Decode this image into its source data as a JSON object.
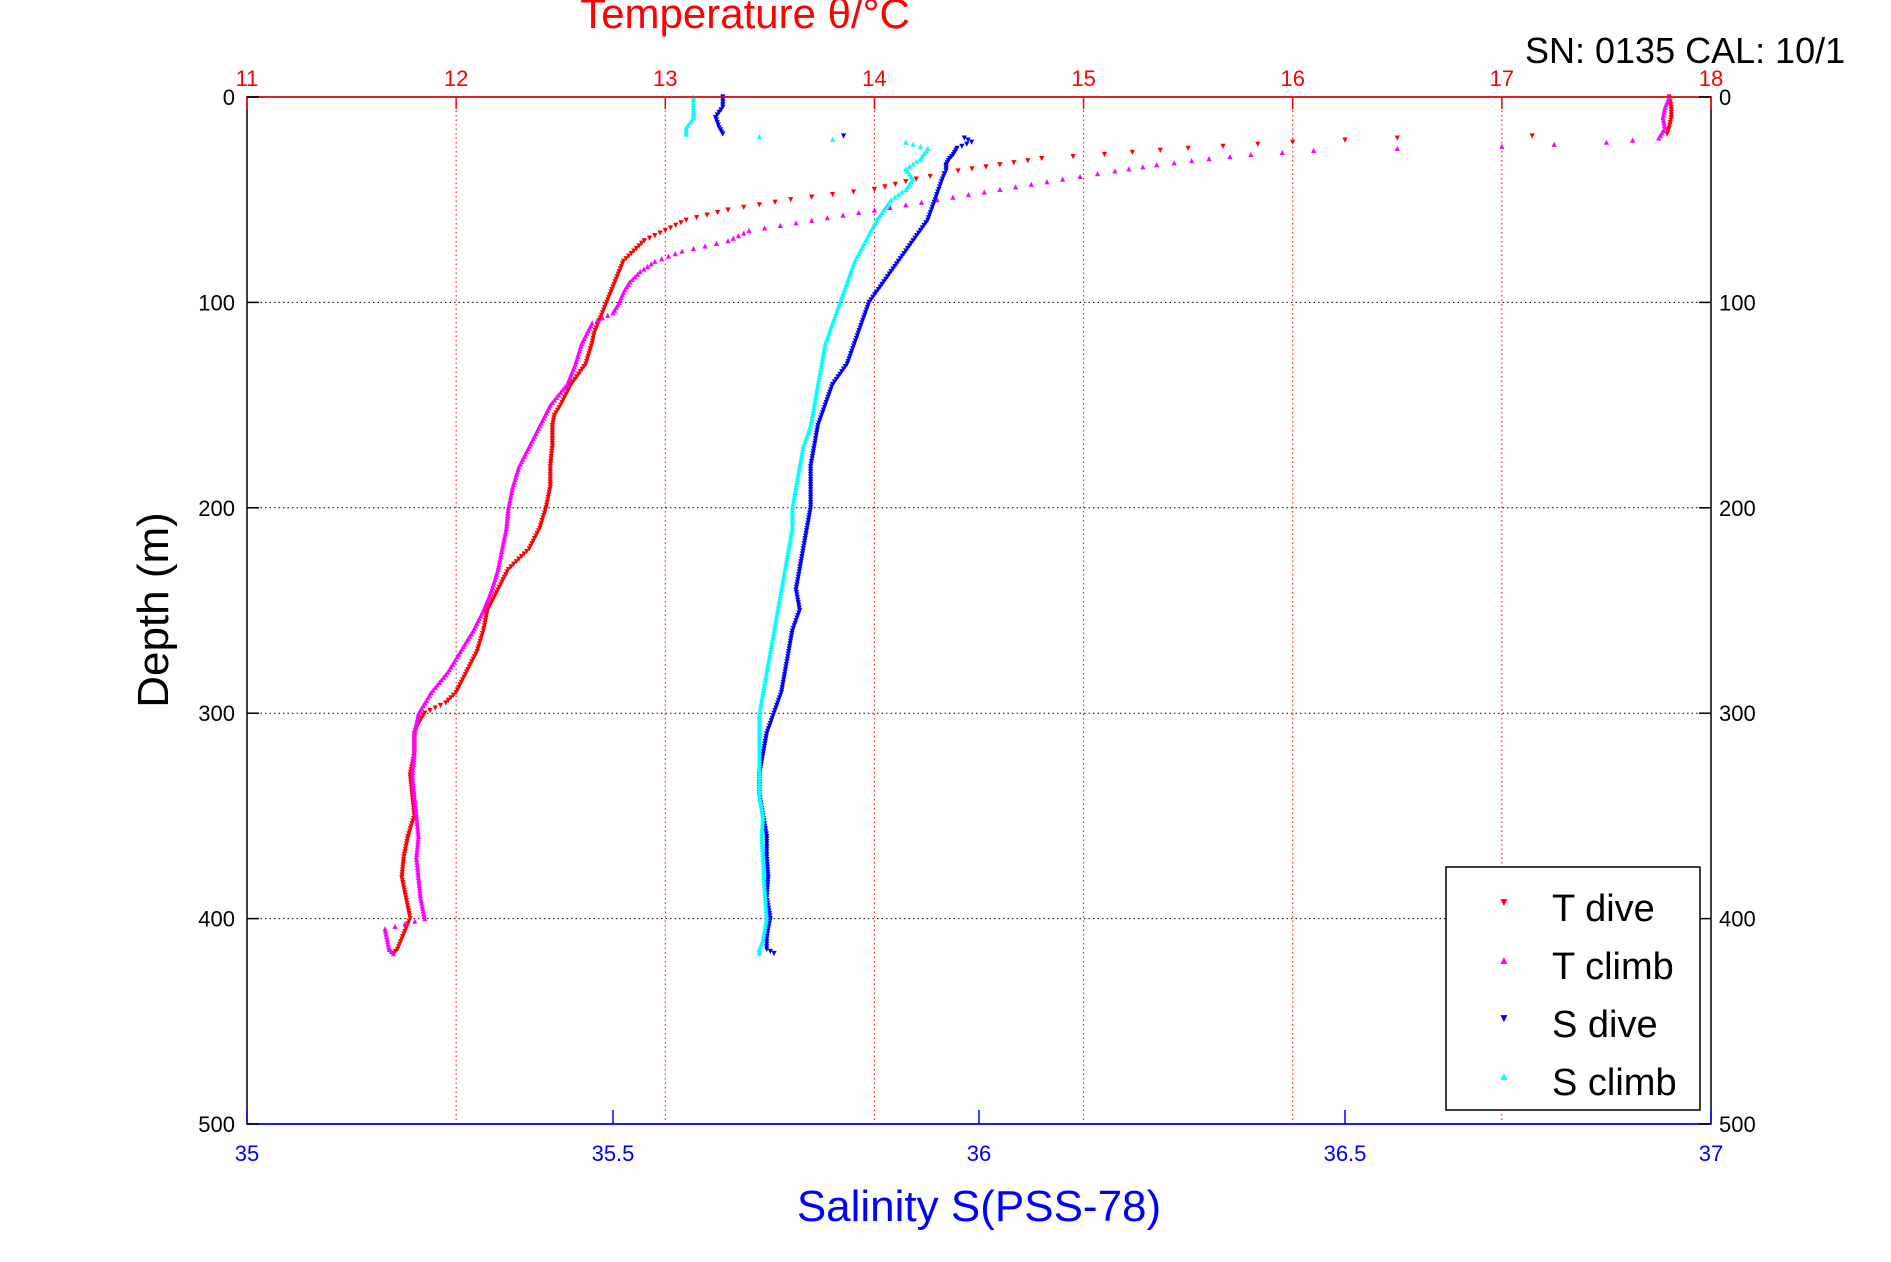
{
  "chart_data": {
    "type": "scatter",
    "title": "Temperature θ/°C",
    "annotation": "SN: 0135  CAL: 10/1",
    "xlabel": "Salinity S(PSS-78)",
    "ylabel": "Depth (m)",
    "x_top": {
      "label": "Temperature θ/°C",
      "lim": [
        11,
        18
      ],
      "ticks": [
        11,
        12,
        13,
        14,
        15,
        16,
        17,
        18
      ],
      "color": "#ff0000"
    },
    "x_bottom": {
      "label": "Salinity S(PSS-78)",
      "lim": [
        35,
        37
      ],
      "ticks": [
        "35",
        "35.5",
        "36",
        "36.5",
        "37"
      ],
      "tick_values": [
        35,
        35.5,
        36,
        36.5,
        37
      ],
      "color": "#0000ff"
    },
    "y": {
      "label": "Depth (m)",
      "lim": [
        0,
        500
      ],
      "reversed": true,
      "ticks": [
        0,
        100,
        200,
        300,
        400,
        500
      ]
    },
    "grid": true,
    "legend_position": "bottom-right",
    "legend": [
      "T dive",
      "T climb",
      "S dive",
      "S climb"
    ],
    "series": [
      {
        "name": "T dive",
        "axis": "temperature",
        "color": "#ff0000",
        "marker": "triangle-down",
        "depth": [
          0,
          5,
          10,
          15,
          18,
          20,
          22,
          25,
          28,
          30,
          33,
          36,
          40,
          45,
          50,
          55,
          60,
          65,
          70,
          75,
          80,
          85,
          90,
          95,
          100,
          105,
          110,
          115,
          120,
          130,
          140,
          150,
          155,
          160,
          170,
          180,
          190,
          200,
          210,
          220,
          230,
          240,
          250,
          260,
          270,
          280,
          290,
          295,
          300,
          305,
          310,
          320,
          330,
          340,
          350,
          360,
          370,
          380,
          390,
          400,
          405,
          410,
          415,
          417
        ],
        "value": [
          17.8,
          17.81,
          17.81,
          17.8,
          17.79,
          16.5,
          16.0,
          15.5,
          15.1,
          14.8,
          14.6,
          14.4,
          14.2,
          14.0,
          13.6,
          13.3,
          13.1,
          13.0,
          12.9,
          12.85,
          12.8,
          12.78,
          12.76,
          12.74,
          12.72,
          12.7,
          12.68,
          12.66,
          12.65,
          12.62,
          12.55,
          12.5,
          12.47,
          12.46,
          12.46,
          12.45,
          12.45,
          12.43,
          12.4,
          12.35,
          12.25,
          12.2,
          12.15,
          12.13,
          12.1,
          12.05,
          12.0,
          11.95,
          11.85,
          11.82,
          11.8,
          11.8,
          11.78,
          11.79,
          11.8,
          11.77,
          11.75,
          11.74,
          11.76,
          11.78,
          11.76,
          11.74,
          11.72,
          11.7
        ]
      },
      {
        "name": "T climb",
        "axis": "temperature",
        "color": "#ff00ff",
        "marker": "triangle-up",
        "depth": [
          417,
          415,
          410,
          405,
          400,
          395,
          390,
          380,
          370,
          360,
          350,
          340,
          330,
          320,
          310,
          300,
          295,
          290,
          285,
          280,
          270,
          260,
          250,
          240,
          230,
          220,
          210,
          200,
          190,
          180,
          170,
          160,
          150,
          140,
          130,
          120,
          110,
          105,
          100,
          95,
          90,
          85,
          80,
          75,
          70,
          65,
          60,
          55,
          50,
          45,
          40,
          36,
          33,
          30,
          28,
          26,
          25,
          24,
          22,
          20,
          15,
          10,
          5,
          0
        ],
        "value": [
          11.7,
          11.68,
          11.67,
          11.66,
          11.85,
          11.84,
          11.83,
          11.82,
          11.81,
          11.82,
          11.81,
          11.8,
          11.79,
          11.8,
          11.8,
          11.82,
          11.85,
          11.88,
          11.92,
          11.96,
          12.02,
          12.08,
          12.13,
          12.17,
          12.2,
          12.22,
          12.24,
          12.25,
          12.27,
          12.3,
          12.35,
          12.4,
          12.45,
          12.53,
          12.57,
          12.6,
          12.65,
          12.75,
          12.78,
          12.8,
          12.83,
          12.88,
          12.95,
          13.08,
          13.3,
          13.4,
          13.7,
          14.0,
          14.3,
          14.6,
          14.9,
          15.15,
          15.35,
          15.6,
          15.8,
          16.1,
          16.5,
          17.0,
          17.5,
          17.75,
          17.78,
          17.77,
          17.78,
          17.8
        ]
      },
      {
        "name": "S dive",
        "axis": "salinity",
        "color": "#0000ff",
        "marker": "triangle-down",
        "depth": [
          0,
          5,
          10,
          15,
          18,
          20,
          22,
          25,
          28,
          30,
          33,
          36,
          40,
          45,
          50,
          55,
          60,
          65,
          70,
          75,
          80,
          85,
          90,
          95,
          100,
          110,
          120,
          130,
          140,
          150,
          160,
          170,
          180,
          190,
          200,
          210,
          220,
          230,
          240,
          250,
          260,
          270,
          280,
          290,
          300,
          310,
          320,
          330,
          340,
          350,
          360,
          370,
          380,
          390,
          400,
          405,
          410,
          415,
          417
        ],
        "value": [
          35.65,
          35.65,
          35.64,
          35.645,
          35.65,
          35.98,
          35.99,
          35.97,
          35.965,
          35.96,
          35.955,
          35.955,
          35.95,
          35.945,
          35.94,
          35.935,
          35.93,
          35.92,
          35.91,
          35.9,
          35.89,
          35.88,
          35.87,
          35.86,
          35.85,
          35.84,
          35.83,
          35.82,
          35.8,
          35.79,
          35.78,
          35.775,
          35.77,
          35.77,
          35.77,
          35.765,
          35.76,
          35.755,
          35.75,
          35.755,
          35.745,
          35.74,
          35.735,
          35.73,
          35.72,
          35.71,
          35.705,
          35.7,
          35.7,
          35.705,
          35.71,
          35.71,
          35.712,
          35.71,
          35.715,
          35.712,
          35.71,
          35.71,
          35.72
        ]
      },
      {
        "name": "S climb",
        "axis": "salinity",
        "color": "#00ffff",
        "marker": "triangle-up",
        "depth": [
          417,
          415,
          410,
          400,
          390,
          380,
          370,
          360,
          350,
          340,
          330,
          320,
          310,
          300,
          290,
          280,
          270,
          260,
          250,
          240,
          230,
          220,
          210,
          200,
          190,
          180,
          170,
          160,
          150,
          140,
          130,
          120,
          110,
          100,
          90,
          80,
          70,
          60,
          55,
          50,
          45,
          40,
          35,
          30,
          25,
          22,
          18,
          15,
          10,
          5,
          0
        ],
        "value": [
          35.7,
          35.7,
          35.705,
          35.71,
          35.708,
          35.706,
          35.705,
          35.703,
          35.705,
          35.7,
          35.7,
          35.7,
          35.7,
          35.7,
          35.705,
          35.71,
          35.715,
          35.72,
          35.725,
          35.73,
          35.735,
          35.74,
          35.745,
          35.745,
          35.75,
          35.755,
          35.76,
          35.77,
          35.775,
          35.78,
          35.785,
          35.79,
          35.8,
          35.81,
          35.82,
          35.83,
          35.845,
          35.86,
          35.87,
          35.88,
          35.9,
          35.91,
          35.9,
          35.92,
          35.93,
          35.9,
          35.6,
          35.6,
          35.61,
          35.61,
          35.61
        ]
      }
    ]
  }
}
